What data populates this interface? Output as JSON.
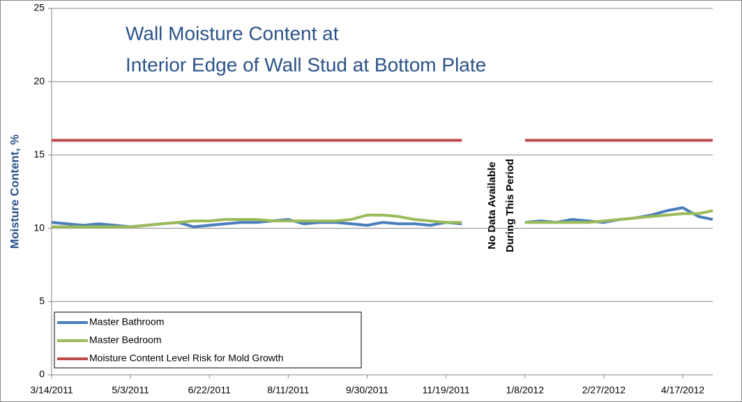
{
  "chart_data": {
    "type": "line",
    "title": [
      "Wall Moisture Content at",
      "Interior Edge of Wall Stud at Bottom Plate"
    ],
    "y_label": "Moisture Content, %",
    "annotation": [
      "No Data Available",
      "During This Period"
    ],
    "x": [
      "3/14/2011",
      "3/24/2011",
      "4/3/2011",
      "4/13/2011",
      "4/23/2011",
      "5/3/2011",
      "5/13/2011",
      "5/23/2011",
      "6/2/2011",
      "6/12/2011",
      "6/22/2011",
      "7/2/2011",
      "7/12/2011",
      "7/22/2011",
      "8/1/2011",
      "8/11/2011",
      "8/21/2011",
      "8/31/2011",
      "9/10/2011",
      "9/20/2011",
      "9/30/2011",
      "10/10/2011",
      "10/20/2011",
      "10/30/2011",
      "11/9/2011",
      "11/19/2011",
      "11/29/2011",
      "12/9/2011",
      "12/19/2011",
      "12/29/2011",
      "1/8/2012",
      "1/18/2012",
      "1/28/2012",
      "2/7/2012",
      "2/17/2012",
      "2/27/2012",
      "3/8/2012",
      "3/18/2012",
      "3/28/2012",
      "4/7/2012",
      "4/17/2012",
      "4/27/2012",
      "5/6/2012"
    ],
    "series": [
      {
        "name": "Master Bathroom",
        "color": "#4a7ebb",
        "values": [
          10.4,
          10.3,
          10.2,
          10.3,
          10.2,
          10.1,
          10.2,
          10.3,
          10.4,
          10.1,
          10.2,
          10.3,
          10.4,
          10.4,
          10.5,
          10.6,
          10.3,
          10.4,
          10.4,
          10.3,
          10.2,
          10.4,
          10.3,
          10.3,
          10.2,
          10.4,
          10.3,
          null,
          null,
          null,
          10.4,
          10.5,
          10.4,
          10.6,
          10.5,
          10.4,
          10.6,
          10.7,
          10.9,
          11.2,
          11.4,
          10.8,
          10.6
        ]
      },
      {
        "name": "Master Bedroom",
        "color": "#9bbb59",
        "values": [
          10.1,
          10.1,
          10.1,
          10.1,
          10.1,
          10.1,
          10.2,
          10.3,
          10.4,
          10.5,
          10.5,
          10.6,
          10.6,
          10.6,
          10.5,
          10.5,
          10.5,
          10.5,
          10.5,
          10.6,
          10.9,
          10.9,
          10.8,
          10.6,
          10.5,
          10.4,
          10.4,
          null,
          null,
          null,
          10.4,
          10.4,
          10.4,
          10.4,
          10.4,
          10.5,
          10.6,
          10.7,
          10.8,
          10.9,
          11.0,
          11.0,
          11.2
        ]
      },
      {
        "name": "Moisture Content Level Risk for Mold Growth",
        "color": "#be4b48",
        "values": [
          16,
          16,
          16,
          16,
          16,
          16,
          16,
          16,
          16,
          16,
          16,
          16,
          16,
          16,
          16,
          16,
          16,
          16,
          16,
          16,
          16,
          16,
          16,
          16,
          16,
          16,
          16,
          null,
          null,
          null,
          16,
          16,
          16,
          16,
          16,
          16,
          16,
          16,
          16,
          16,
          16,
          16,
          16
        ]
      }
    ],
    "xlim": [
      "3/14/2011",
      "5/6/2012"
    ],
    "xticks": [
      "3/14/2011",
      "5/3/2011",
      "6/22/2011",
      "8/11/2011",
      "9/30/2011",
      "11/19/2011",
      "1/8/2012",
      "2/27/2012",
      "4/17/2012"
    ],
    "ylim": [
      0,
      25
    ],
    "yticks": [
      0,
      5,
      10,
      15,
      20,
      25
    ],
    "grid": true,
    "legend": "lower left"
  }
}
